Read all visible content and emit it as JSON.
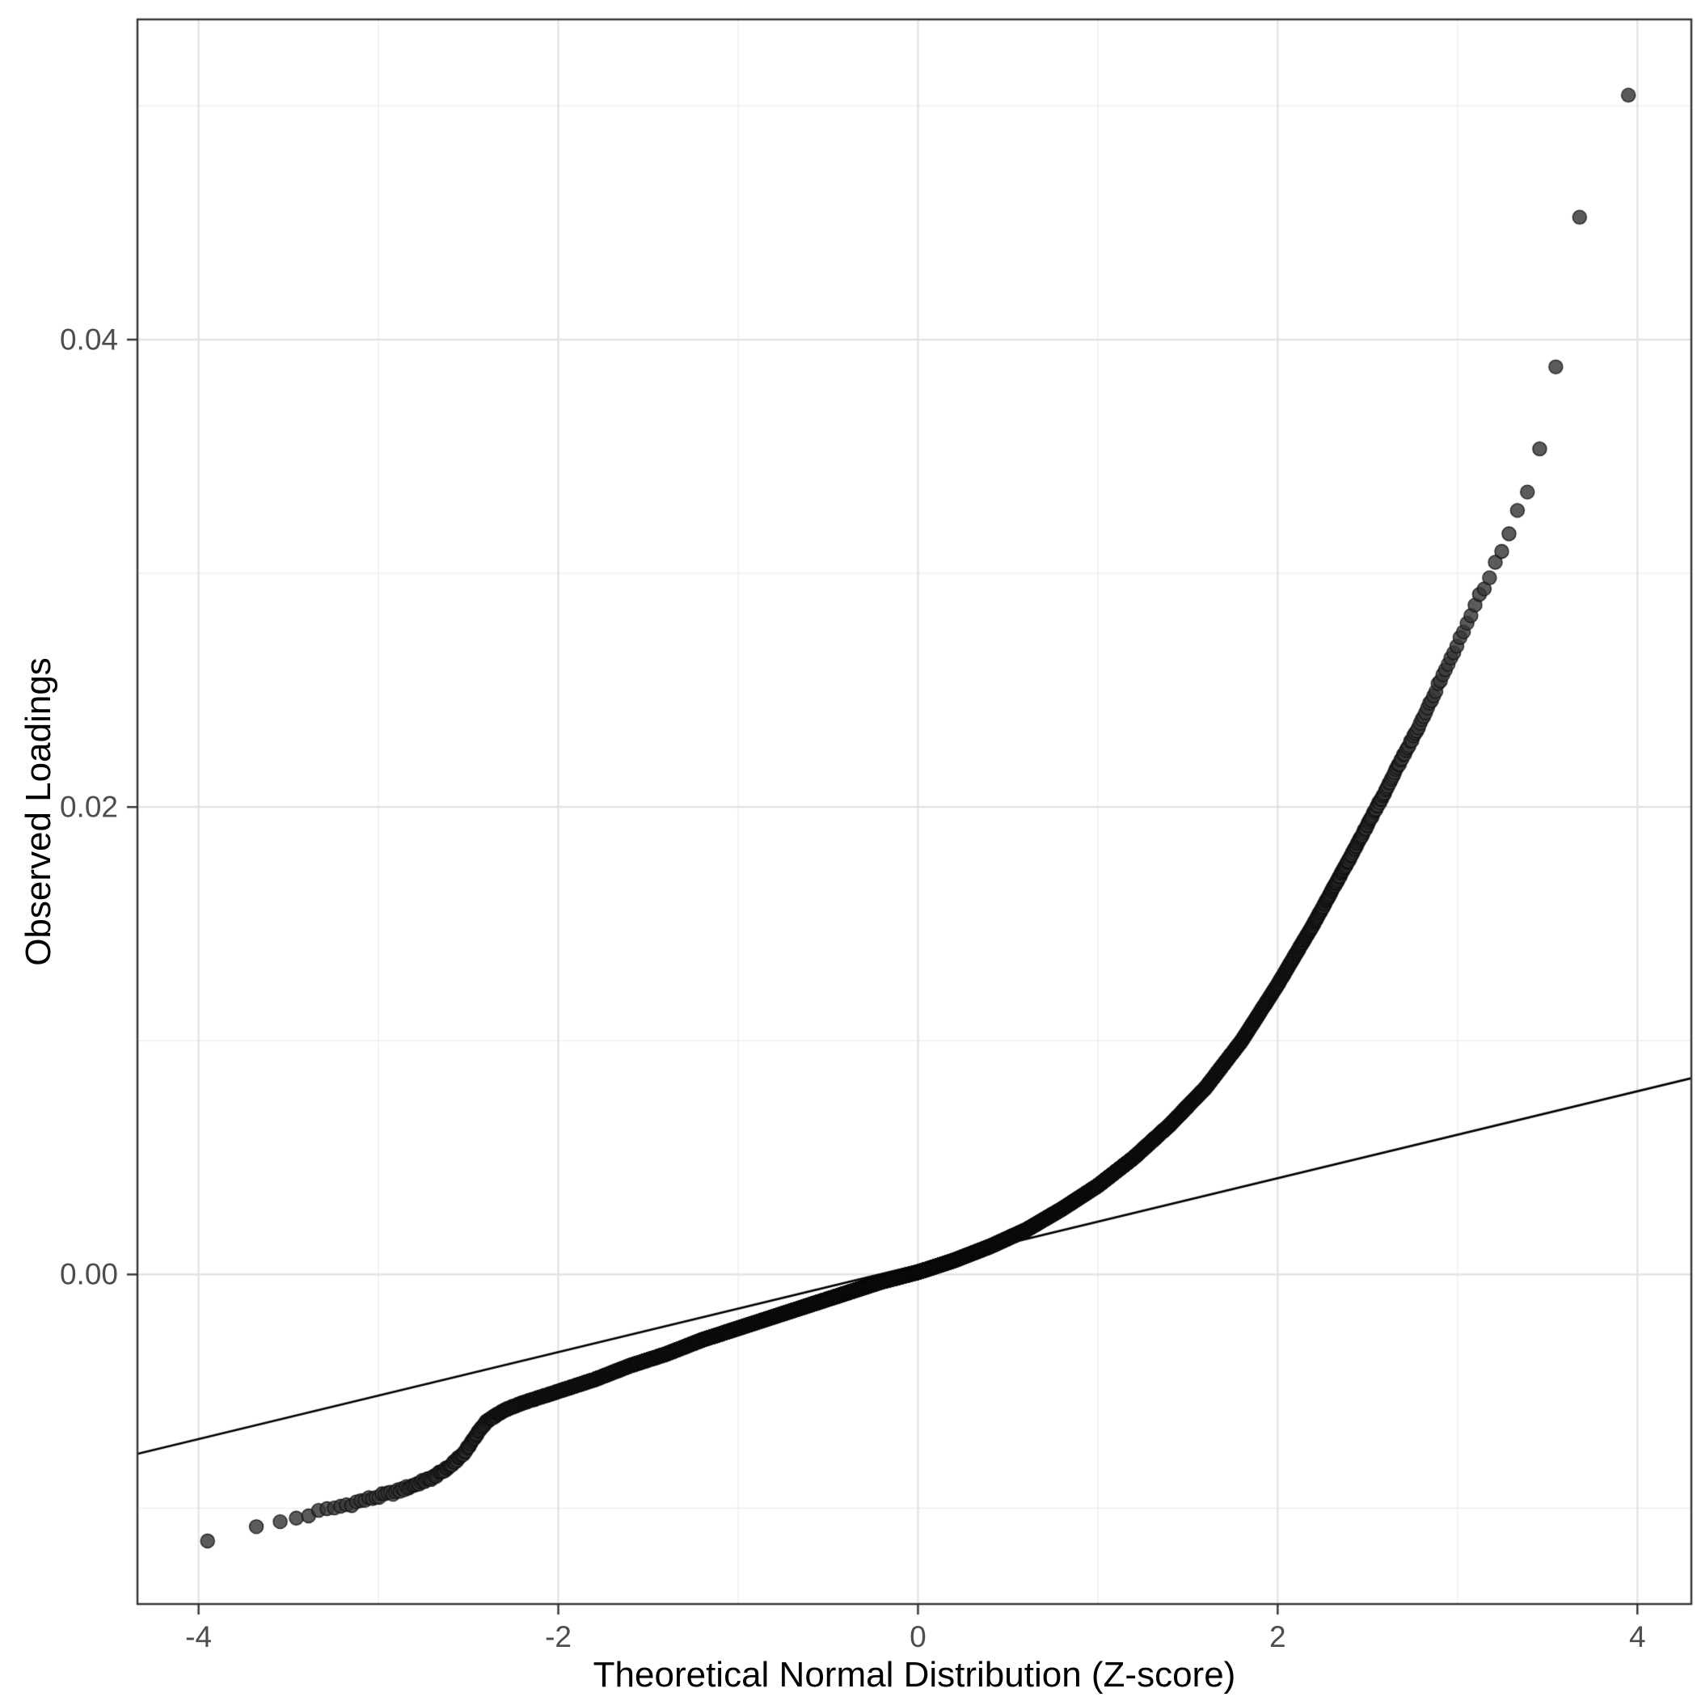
{
  "chart_data": {
    "type": "scatter",
    "subtype": "qq-plot",
    "title": "",
    "xlabel": "Theoretical Normal Distribution (Z-score)",
    "ylabel": "Observed Loadings",
    "x_ticks": [
      -4,
      -2,
      0,
      2,
      4
    ],
    "x_tick_labels": [
      "-4",
      "-2",
      "0",
      "2",
      "4"
    ],
    "x_minor_ticks": [
      -3,
      -1,
      1,
      3
    ],
    "y_ticks": [
      0.0,
      0.02,
      0.04
    ],
    "y_tick_labels": [
      "0.00",
      "0.02",
      "0.04"
    ],
    "y_minor_ticks": [
      -0.01,
      0.01,
      0.03,
      0.05
    ],
    "xlim": [
      -4.34,
      4.3
    ],
    "ylim": [
      -0.0141,
      0.0537
    ],
    "grid": true,
    "legend": "none",
    "n_points": 12800,
    "reference_line": {
      "intercept": 0.0004,
      "slope": 0.00186
    },
    "curve_quantiles": [
      [
        -3.95,
        -0.0113
      ],
      [
        -3.8,
        -0.0111
      ],
      [
        -3.65,
        -0.0108
      ],
      [
        -3.5,
        -0.0105
      ],
      [
        -3.35,
        -0.0102
      ],
      [
        -3.2,
        -0.0099
      ],
      [
        -3.05,
        -0.0096
      ],
      [
        -2.9,
        -0.0093
      ],
      [
        -2.8,
        -0.009
      ],
      [
        -2.7,
        -0.0087
      ],
      [
        -2.6,
        -0.0082
      ],
      [
        -2.52,
        -0.0076
      ],
      [
        -2.45,
        -0.0068
      ],
      [
        -2.4,
        -0.0063
      ],
      [
        -2.3,
        -0.0058
      ],
      [
        -2.2,
        -0.0055
      ],
      [
        -2.0,
        -0.005
      ],
      [
        -1.8,
        -0.0045
      ],
      [
        -1.6,
        -0.0039
      ],
      [
        -1.4,
        -0.0034
      ],
      [
        -1.2,
        -0.0028
      ],
      [
        -1.0,
        -0.0023
      ],
      [
        -0.8,
        -0.0018
      ],
      [
        -0.6,
        -0.0013
      ],
      [
        -0.4,
        -0.0008
      ],
      [
        -0.2,
        -0.0003
      ],
      [
        0.0,
        0.0001
      ],
      [
        0.2,
        0.0006
      ],
      [
        0.4,
        0.0012
      ],
      [
        0.6,
        0.0019
      ],
      [
        0.8,
        0.0028
      ],
      [
        1.0,
        0.0038
      ],
      [
        1.2,
        0.005
      ],
      [
        1.4,
        0.0064
      ],
      [
        1.6,
        0.008
      ],
      [
        1.8,
        0.01
      ],
      [
        2.0,
        0.0124
      ],
      [
        2.2,
        0.015
      ],
      [
        2.4,
        0.0178
      ],
      [
        2.6,
        0.0207
      ],
      [
        2.8,
        0.0237
      ],
      [
        3.0,
        0.027
      ],
      [
        3.1,
        0.0287
      ],
      [
        3.2,
        0.0302
      ],
      [
        3.3,
        0.032
      ],
      [
        3.4,
        0.0338
      ],
      [
        3.45,
        0.035
      ],
      [
        3.5,
        0.0378
      ],
      [
        3.55,
        0.0388
      ],
      [
        3.6,
        0.044
      ],
      [
        3.7,
        0.0456
      ],
      [
        3.95,
        0.0505
      ]
    ],
    "colors": {
      "background": "#ffffff",
      "panel_background": "#ffffff",
      "grid_major": "#e2e2e2",
      "grid_minor": "#ededed",
      "panel_border": "#333333",
      "axis_text": "#4d4d4d",
      "axis_title": "#000000",
      "tick_mark": "#333333",
      "point_fill": "rgba(55,55,55,0.82)",
      "point_stroke": "rgba(15,15,15,0.9)",
      "reference_line": "#000000"
    }
  }
}
